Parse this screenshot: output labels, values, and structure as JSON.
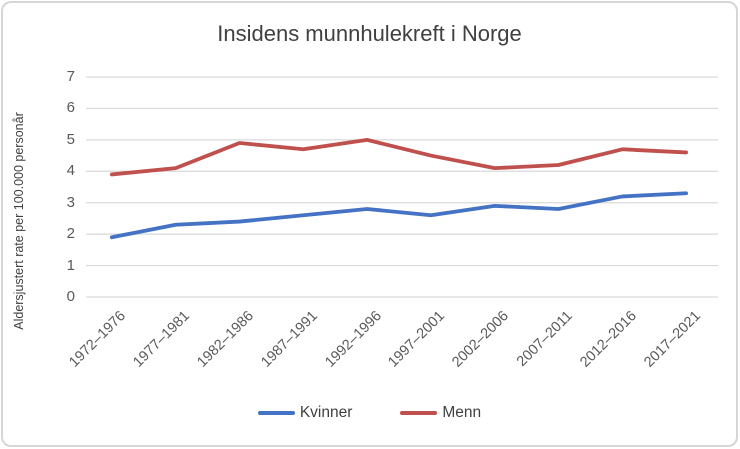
{
  "chart_data": {
    "type": "line",
    "title": "Insidens munnhulekreft i Norge",
    "xlabel": "",
    "ylabel": "Aldersjustert rate per 100.000 personår",
    "categories": [
      "1972–1976",
      "1977–1981",
      "1982–1986",
      "1987–1991",
      "1992–1996",
      "1997–2001",
      "2002–2006",
      "2007–2011",
      "2012–2016",
      "2017–2021"
    ],
    "series": [
      {
        "name": "Kvinner",
        "color": "#4472C4",
        "values": [
          1.9,
          2.3,
          2.4,
          2.6,
          2.8,
          2.6,
          2.9,
          2.8,
          3.2,
          3.3
        ]
      },
      {
        "name": "Menn",
        "color": "#C0504D",
        "values": [
          3.9,
          4.1,
          4.9,
          4.7,
          5.0,
          4.5,
          4.1,
          4.2,
          4.7,
          4.6
        ]
      }
    ],
    "ylim": [
      0,
      7
    ],
    "yticks": [
      0,
      1,
      2,
      3,
      4,
      5,
      6,
      7
    ],
    "grid": true,
    "legend_position": "bottom",
    "colors": {
      "gridline": "#d9d9d9",
      "text": "#595959",
      "title_text": "#404040",
      "frame_border": "#d6d6d6"
    }
  }
}
